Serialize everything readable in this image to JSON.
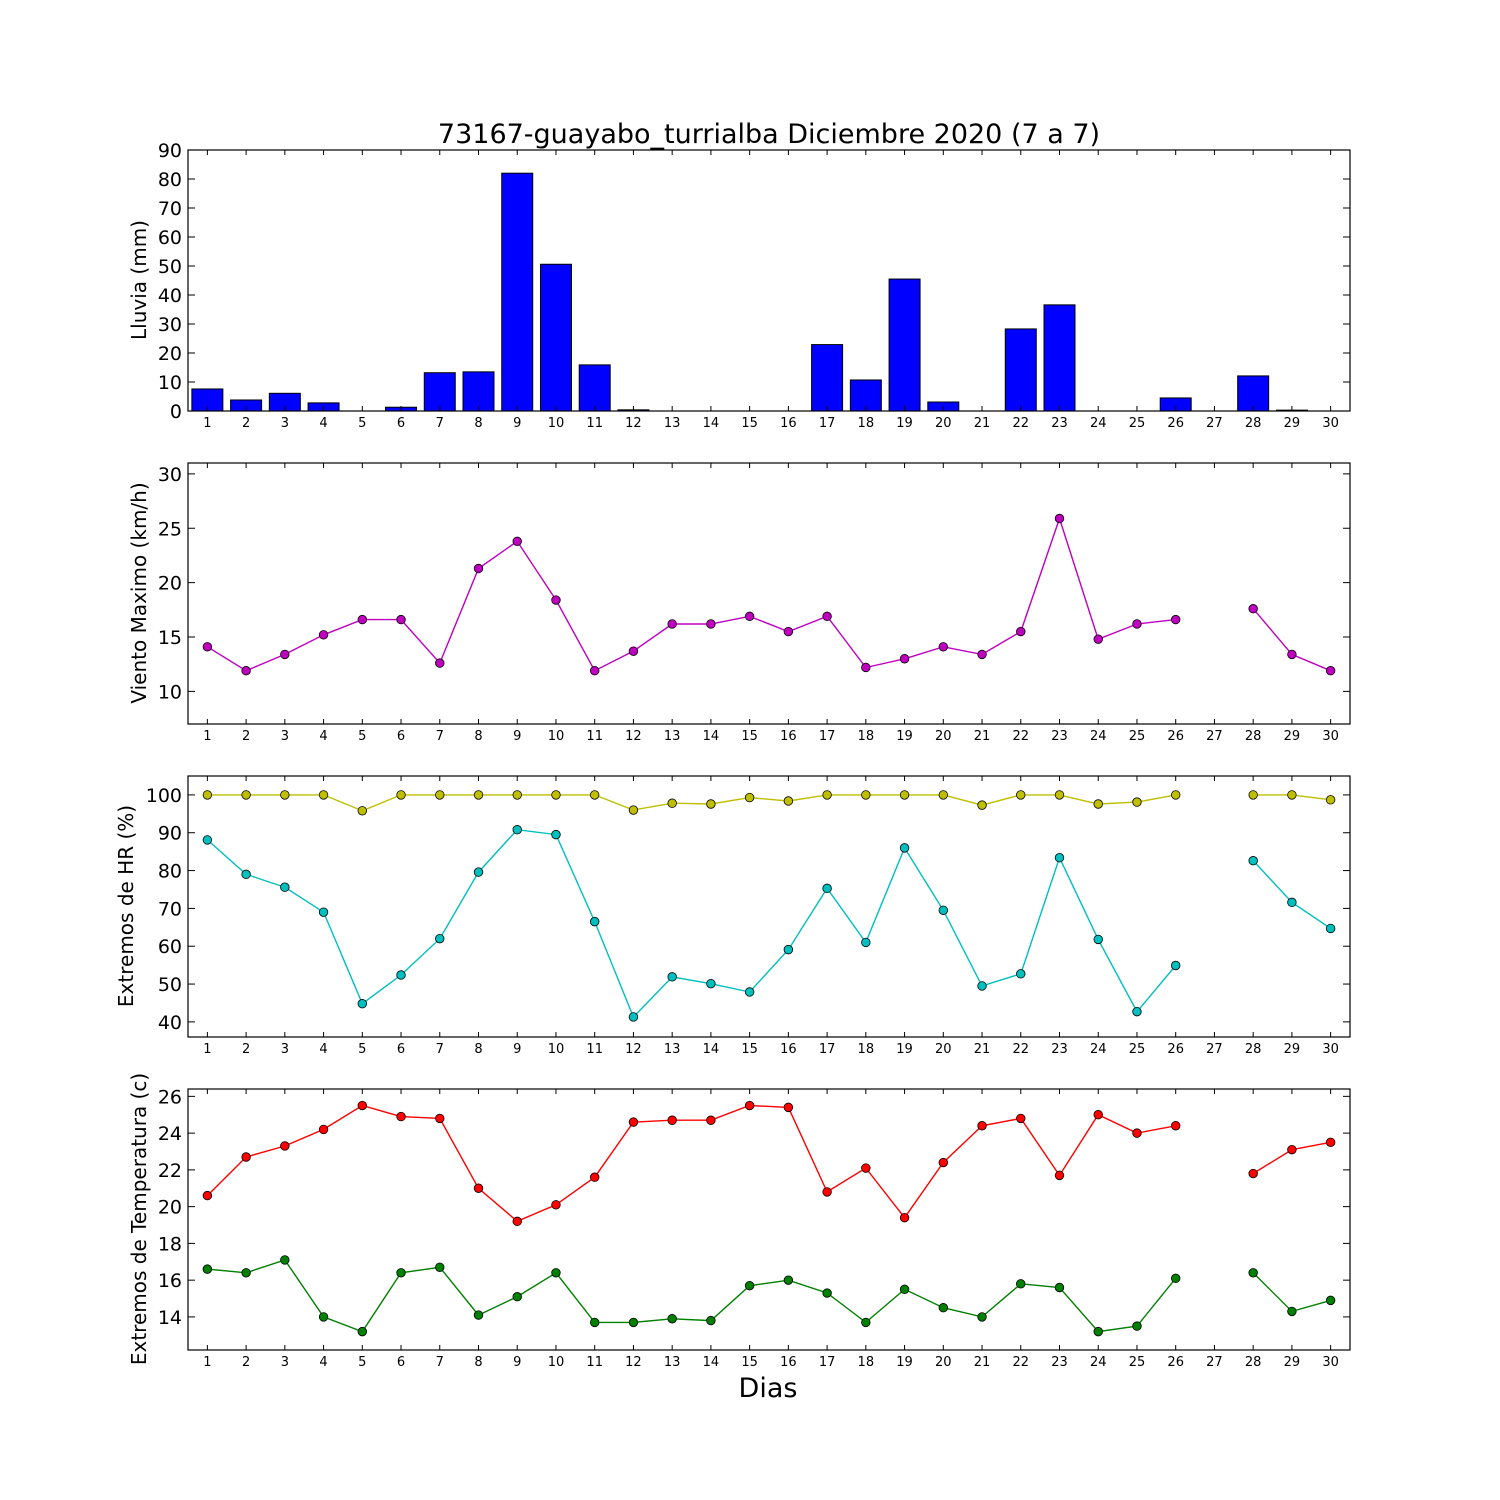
{
  "chart_data": [
    {
      "type": "bar",
      "title": "73167-guayabo_turrialba Diciembre 2020  (7 a 7)",
      "xlabel": "",
      "ylabel": "Lluvia (mm)",
      "ylim": [
        0,
        90
      ],
      "yticks": [
        0,
        10,
        20,
        30,
        40,
        50,
        60,
        70,
        80,
        90
      ],
      "categories": [
        "1",
        "2",
        "3",
        "4",
        "5",
        "6",
        "7",
        "8",
        "9",
        "10",
        "11",
        "12",
        "13",
        "14",
        "15",
        "16",
        "17",
        "18",
        "19",
        "20",
        "21",
        "22",
        "23",
        "24",
        "25",
        "26",
        "27",
        "28",
        "29",
        "30"
      ],
      "series": [
        {
          "color": "#0000ff",
          "values": [
            7.6,
            3.8,
            6.1,
            2.8,
            0,
            1.3,
            13.2,
            13.5,
            82.0,
            50.6,
            15.9,
            0.4,
            0,
            0,
            0,
            0,
            22.9,
            10.7,
            45.5,
            3.1,
            0,
            28.3,
            36.6,
            0,
            0,
            4.5,
            0,
            12.1,
            0.3,
            0
          ]
        }
      ],
      "grid": false
    },
    {
      "type": "line",
      "title": "",
      "xlabel": "",
      "ylabel": "Viento Maximo (km/h)",
      "ylim": [
        7,
        31
      ],
      "yticks": [
        10,
        15,
        20,
        25,
        30
      ],
      "categories": [
        "1",
        "2",
        "3",
        "4",
        "5",
        "6",
        "7",
        "8",
        "9",
        "10",
        "11",
        "12",
        "13",
        "14",
        "15",
        "16",
        "17",
        "18",
        "19",
        "20",
        "21",
        "22",
        "23",
        "24",
        "25",
        "26",
        "27",
        "28",
        "29",
        "30"
      ],
      "series": [
        {
          "color": "#bf00bf",
          "values": [
            14.1,
            11.9,
            13.4,
            15.2,
            16.6,
            16.6,
            12.6,
            21.3,
            23.8,
            18.4,
            11.9,
            13.7,
            16.2,
            16.2,
            16.9,
            15.5,
            16.9,
            12.2,
            13.0,
            14.1,
            13.4,
            15.5,
            25.9,
            14.8,
            16.2,
            16.6,
            null,
            17.6,
            13.4,
            11.9
          ]
        }
      ],
      "grid": false
    },
    {
      "type": "line",
      "title": "",
      "xlabel": "",
      "ylabel": "Extremos de HR (%)",
      "ylim": [
        36,
        105
      ],
      "yticks": [
        40,
        50,
        60,
        70,
        80,
        90,
        100
      ],
      "categories": [
        "1",
        "2",
        "3",
        "4",
        "5",
        "6",
        "7",
        "8",
        "9",
        "10",
        "11",
        "12",
        "13",
        "14",
        "15",
        "16",
        "17",
        "18",
        "19",
        "20",
        "21",
        "22",
        "23",
        "24",
        "25",
        "26",
        "27",
        "28",
        "29",
        "30"
      ],
      "series": [
        {
          "color": "#bfbf00",
          "values": [
            100,
            100,
            100,
            100,
            95.8,
            100,
            100,
            100,
            100,
            100,
            100,
            96.0,
            97.8,
            97.6,
            99.3,
            98.4,
            100,
            100,
            100,
            100,
            97.3,
            100,
            100,
            97.6,
            98.1,
            100,
            null,
            100,
            100,
            98.7
          ]
        },
        {
          "color": "#00bfbf",
          "values": [
            88.1,
            79.0,
            75.6,
            69.0,
            44.8,
            52.4,
            62.0,
            79.6,
            90.8,
            89.5,
            66.5,
            41.3,
            51.9,
            50.1,
            47.9,
            59.1,
            75.3,
            61.0,
            86.0,
            69.5,
            49.5,
            52.7,
            83.4,
            61.8,
            42.7,
            54.9,
            null,
            82.6,
            71.6,
            64.7
          ]
        }
      ],
      "grid": false
    },
    {
      "type": "line",
      "title": "",
      "xlabel": "Dias",
      "ylabel": "Extremos de Temperatura (c)",
      "ylim": [
        12.2,
        26.4
      ],
      "yticks": [
        14,
        16,
        18,
        20,
        22,
        24,
        26
      ],
      "categories": [
        "1",
        "2",
        "3",
        "4",
        "5",
        "6",
        "7",
        "8",
        "9",
        "10",
        "11",
        "12",
        "13",
        "14",
        "15",
        "16",
        "17",
        "18",
        "19",
        "20",
        "21",
        "22",
        "23",
        "24",
        "25",
        "26",
        "27",
        "28",
        "29",
        "30"
      ],
      "series": [
        {
          "color": "#ff0000",
          "values": [
            20.6,
            22.7,
            23.3,
            24.2,
            25.5,
            24.9,
            24.8,
            21.0,
            19.2,
            20.1,
            21.6,
            24.6,
            24.7,
            24.7,
            25.5,
            25.4,
            20.8,
            22.1,
            19.4,
            22.4,
            24.4,
            24.8,
            21.7,
            25.0,
            24.0,
            24.4,
            null,
            21.8,
            23.1,
            23.5
          ]
        },
        {
          "color": "#008000",
          "values": [
            16.6,
            16.4,
            17.1,
            14.0,
            13.2,
            16.4,
            16.7,
            14.1,
            15.1,
            16.4,
            13.7,
            13.7,
            13.9,
            13.8,
            15.7,
            16.0,
            15.3,
            13.7,
            15.5,
            14.5,
            14.0,
            15.8,
            15.6,
            13.2,
            13.5,
            16.1,
            null,
            16.4,
            14.3,
            14.9
          ]
        }
      ],
      "grid": false
    }
  ]
}
